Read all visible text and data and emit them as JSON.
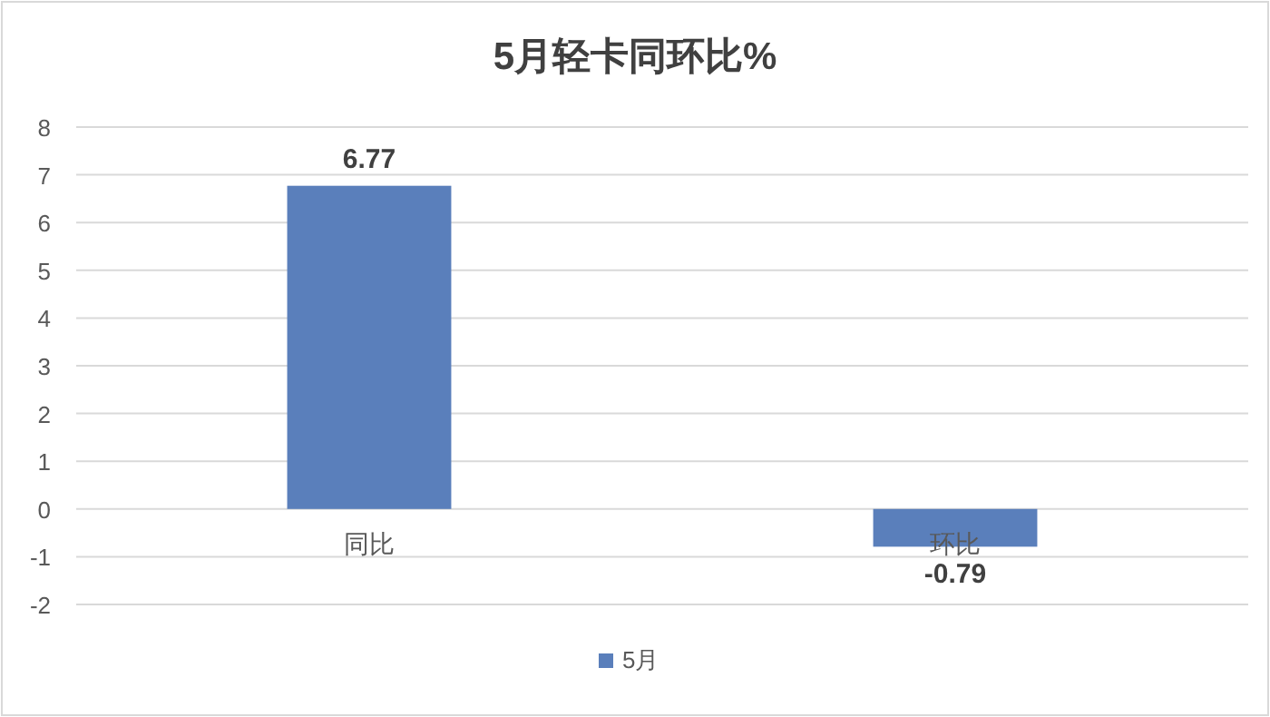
{
  "chart_data": {
    "type": "bar",
    "title": "5月轻卡同环比%",
    "categories": [
      "同比",
      "环比"
    ],
    "series": [
      {
        "name": "5月",
        "color": "#5a7fbb",
        "values": [
          6.77,
          -0.79
        ]
      }
    ],
    "ylim": [
      -2,
      8
    ],
    "yticks": [
      -2,
      -1,
      0,
      1,
      2,
      3,
      4,
      5,
      6,
      7,
      8
    ],
    "grid": "y",
    "legend": "bottom",
    "data_labels": true
  }
}
